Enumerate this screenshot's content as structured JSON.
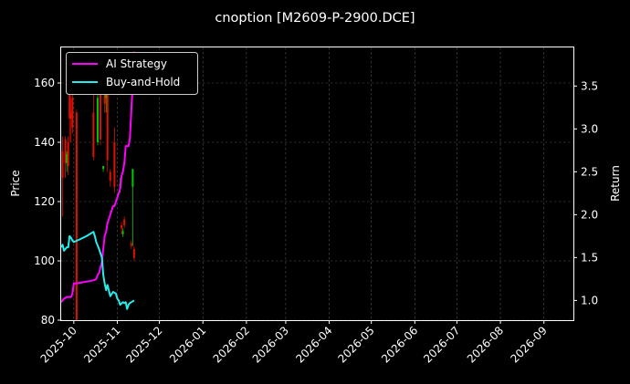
{
  "chart_data": {
    "type": "line",
    "title": "cnoption [M2609-P-2900.DCE]",
    "xlabel": "",
    "ylabel": "Price",
    "y2label": "Return",
    "x_range": [
      "2025-09-22",
      "2026-09-22"
    ],
    "ylim": [
      80,
      172
    ],
    "y2lim": [
      0.77,
      3.95
    ],
    "x_ticks": [
      "2025-10",
      "2025-11",
      "2025-12",
      "2026-01",
      "2026-02",
      "2026-03",
      "2026-04",
      "2026-05",
      "2026-06",
      "2026-07",
      "2026-08",
      "2026-09"
    ],
    "y_ticks": [
      80,
      100,
      120,
      140,
      160
    ],
    "y2_ticks": [
      "1.0",
      "1.5",
      "2.0",
      "2.5",
      "3.0",
      "3.5"
    ],
    "grid": true,
    "legend_position": "top-left",
    "colors": {
      "up": "#00c800",
      "down": "#e01000",
      "ai": "#ff00ff",
      "bh": "#22eeee"
    },
    "series": [
      {
        "name": "AI Strategy",
        "axis": "right",
        "points": [
          [
            "2025-09-22",
            0.98
          ],
          [
            "2025-09-24",
            1.02
          ],
          [
            "2025-09-26",
            1.04
          ],
          [
            "2025-09-29",
            1.04
          ],
          [
            "2025-09-30",
            1.08
          ],
          [
            "2025-10-01",
            1.2
          ],
          [
            "2025-10-03",
            1.2
          ],
          [
            "2025-10-07",
            1.21
          ],
          [
            "2025-10-10",
            1.22
          ],
          [
            "2025-10-14",
            1.23
          ],
          [
            "2025-10-16",
            1.24
          ],
          [
            "2025-10-17",
            1.25
          ],
          [
            "2025-10-18",
            1.3
          ],
          [
            "2025-10-19",
            1.32
          ],
          [
            "2025-10-21",
            1.45
          ],
          [
            "2025-10-22",
            1.6
          ],
          [
            "2025-10-23",
            1.75
          ],
          [
            "2025-10-24",
            1.8
          ],
          [
            "2025-10-25",
            1.9
          ],
          [
            "2025-10-27",
            2.0
          ],
          [
            "2025-10-28",
            2.05
          ],
          [
            "2025-10-29",
            2.1
          ],
          [
            "2025-10-30",
            2.1
          ],
          [
            "2025-10-31",
            2.15
          ],
          [
            "2025-11-01",
            2.2
          ],
          [
            "2025-11-02",
            2.25
          ],
          [
            "2025-11-03",
            2.3
          ],
          [
            "2025-11-04",
            2.45
          ],
          [
            "2025-11-05",
            2.5
          ],
          [
            "2025-11-06",
            2.6
          ],
          [
            "2025-11-07",
            2.8
          ],
          [
            "2025-11-09",
            2.8
          ],
          [
            "2025-11-10",
            2.9
          ],
          [
            "2025-11-11",
            3.2
          ],
          [
            "2025-11-12",
            3.55
          ],
          [
            "2025-11-13",
            3.9
          ]
        ]
      },
      {
        "name": "Buy-and-Hold",
        "axis": "right",
        "points": [
          [
            "2025-09-22",
            1.62
          ],
          [
            "2025-09-23",
            1.65
          ],
          [
            "2025-09-24",
            1.58
          ],
          [
            "2025-09-25",
            1.6
          ],
          [
            "2025-09-26",
            1.62
          ],
          [
            "2025-09-27",
            1.62
          ],
          [
            "2025-09-28",
            1.75
          ],
          [
            "2025-09-29",
            1.73
          ],
          [
            "2025-09-30",
            1.7
          ],
          [
            "2025-10-01",
            1.68
          ],
          [
            "2025-10-05",
            1.71
          ],
          [
            "2025-10-10",
            1.75
          ],
          [
            "2025-10-15",
            1.8
          ],
          [
            "2025-10-16",
            1.75
          ],
          [
            "2025-10-17",
            1.68
          ],
          [
            "2025-10-19",
            1.6
          ],
          [
            "2025-10-21",
            1.5
          ],
          [
            "2025-10-22",
            1.3
          ],
          [
            "2025-10-23",
            1.2
          ],
          [
            "2025-10-24",
            1.12
          ],
          [
            "2025-10-25",
            1.18
          ],
          [
            "2025-10-27",
            1.05
          ],
          [
            "2025-10-29",
            1.1
          ],
          [
            "2025-10-31",
            1.08
          ],
          [
            "2025-11-01",
            1.02
          ],
          [
            "2025-11-02",
            1.0
          ],
          [
            "2025-11-03",
            0.95
          ],
          [
            "2025-11-05",
            0.98
          ],
          [
            "2025-11-06",
            0.97
          ],
          [
            "2025-11-07",
            0.98
          ],
          [
            "2025-11-08",
            0.9
          ],
          [
            "2025-11-09",
            0.95
          ],
          [
            "2025-11-10",
            0.97
          ],
          [
            "2025-11-11",
            0.98
          ],
          [
            "2025-11-13",
            1.0
          ]
        ]
      }
    ],
    "candles": [
      {
        "date": "2025-09-23",
        "open": 137,
        "close": 128,
        "high": 142,
        "low": 115
      },
      {
        "date": "2025-09-25",
        "open": 141,
        "close": 133,
        "high": 142,
        "low": 128
      },
      {
        "date": "2025-09-26",
        "open": 133,
        "close": 136,
        "high": 137,
        "low": 130
      },
      {
        "date": "2025-09-27",
        "open": 140,
        "close": 132,
        "high": 142,
        "low": 129
      },
      {
        "date": "2025-09-28",
        "open": 159,
        "close": 148,
        "high": 160,
        "low": 140
      },
      {
        "date": "2025-09-29",
        "open": 150,
        "close": 148,
        "high": 155,
        "low": 140
      },
      {
        "date": "2025-09-30",
        "open": 155,
        "close": 145,
        "high": 157,
        "low": 143
      },
      {
        "date": "2025-10-03",
        "open": 150,
        "close": 80,
        "high": 151,
        "low": 78
      },
      {
        "date": "2025-10-15",
        "open": 150,
        "close": 135,
        "high": 160,
        "low": 134
      },
      {
        "date": "2025-10-18",
        "open": 140,
        "close": 155,
        "high": 160,
        "low": 139
      },
      {
        "date": "2025-10-20",
        "open": 161,
        "close": 141,
        "high": 162,
        "low": 139
      },
      {
        "date": "2025-10-22",
        "open": 131,
        "close": 132,
        "high": 132,
        "low": 130
      },
      {
        "date": "2025-10-23",
        "open": 158,
        "close": 153,
        "high": 160,
        "low": 150
      },
      {
        "date": "2025-10-24",
        "open": 155,
        "close": 157,
        "high": 161,
        "low": 150
      },
      {
        "date": "2025-10-25",
        "open": 158,
        "close": 134,
        "high": 160,
        "low": 130
      },
      {
        "date": "2025-10-27",
        "open": 130,
        "close": 127,
        "high": 131,
        "low": 125
      },
      {
        "date": "2025-10-30",
        "open": 140,
        "close": 125,
        "high": 145,
        "low": 123
      },
      {
        "date": "2025-11-03",
        "open": 125,
        "close": 126,
        "high": 128,
        "low": 123
      },
      {
        "date": "2025-11-04",
        "open": 112,
        "close": 111,
        "high": 113,
        "low": 109
      },
      {
        "date": "2025-11-05",
        "open": 109,
        "close": 110,
        "high": 111,
        "low": 108
      },
      {
        "date": "2025-11-06",
        "open": 114,
        "close": 112,
        "high": 115,
        "low": 111
      },
      {
        "date": "2025-11-11",
        "open": 106,
        "close": 105,
        "high": 107,
        "low": 104
      },
      {
        "date": "2025-11-12",
        "open": 125,
        "close": 131,
        "high": 131,
        "low": 105
      },
      {
        "date": "2025-11-13",
        "open": 104,
        "close": 101,
        "high": 105,
        "low": 100
      }
    ]
  }
}
